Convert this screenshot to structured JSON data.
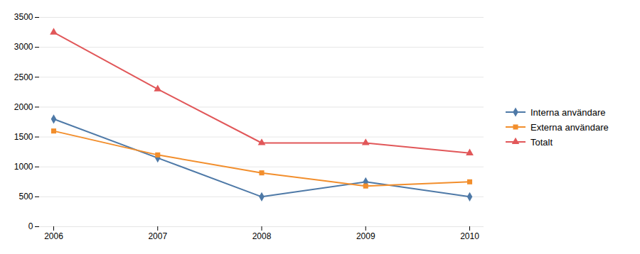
{
  "chart_data": {
    "type": "line",
    "x": [
      2006,
      2007,
      2008,
      2009,
      2010
    ],
    "series": [
      {
        "name": "Interna användare",
        "values": [
          1800,
          1150,
          500,
          750,
          500
        ],
        "marker": "diamond"
      },
      {
        "name": "Externa användare",
        "values": [
          1600,
          1200,
          900,
          680,
          750
        ],
        "marker": "square"
      },
      {
        "name": "Totalt",
        "values": [
          3250,
          2300,
          1400,
          1400,
          1230
        ],
        "marker": "triangle"
      }
    ],
    "xlim": [
      2006,
      2010
    ],
    "xticks": [
      2006,
      2007,
      2008,
      2009,
      2010
    ],
    "ylim": [
      0,
      3500
    ],
    "yticks": [
      0,
      500,
      1000,
      1500,
      2000,
      2500,
      3000,
      3500
    ],
    "grid": true,
    "legend": "right"
  }
}
